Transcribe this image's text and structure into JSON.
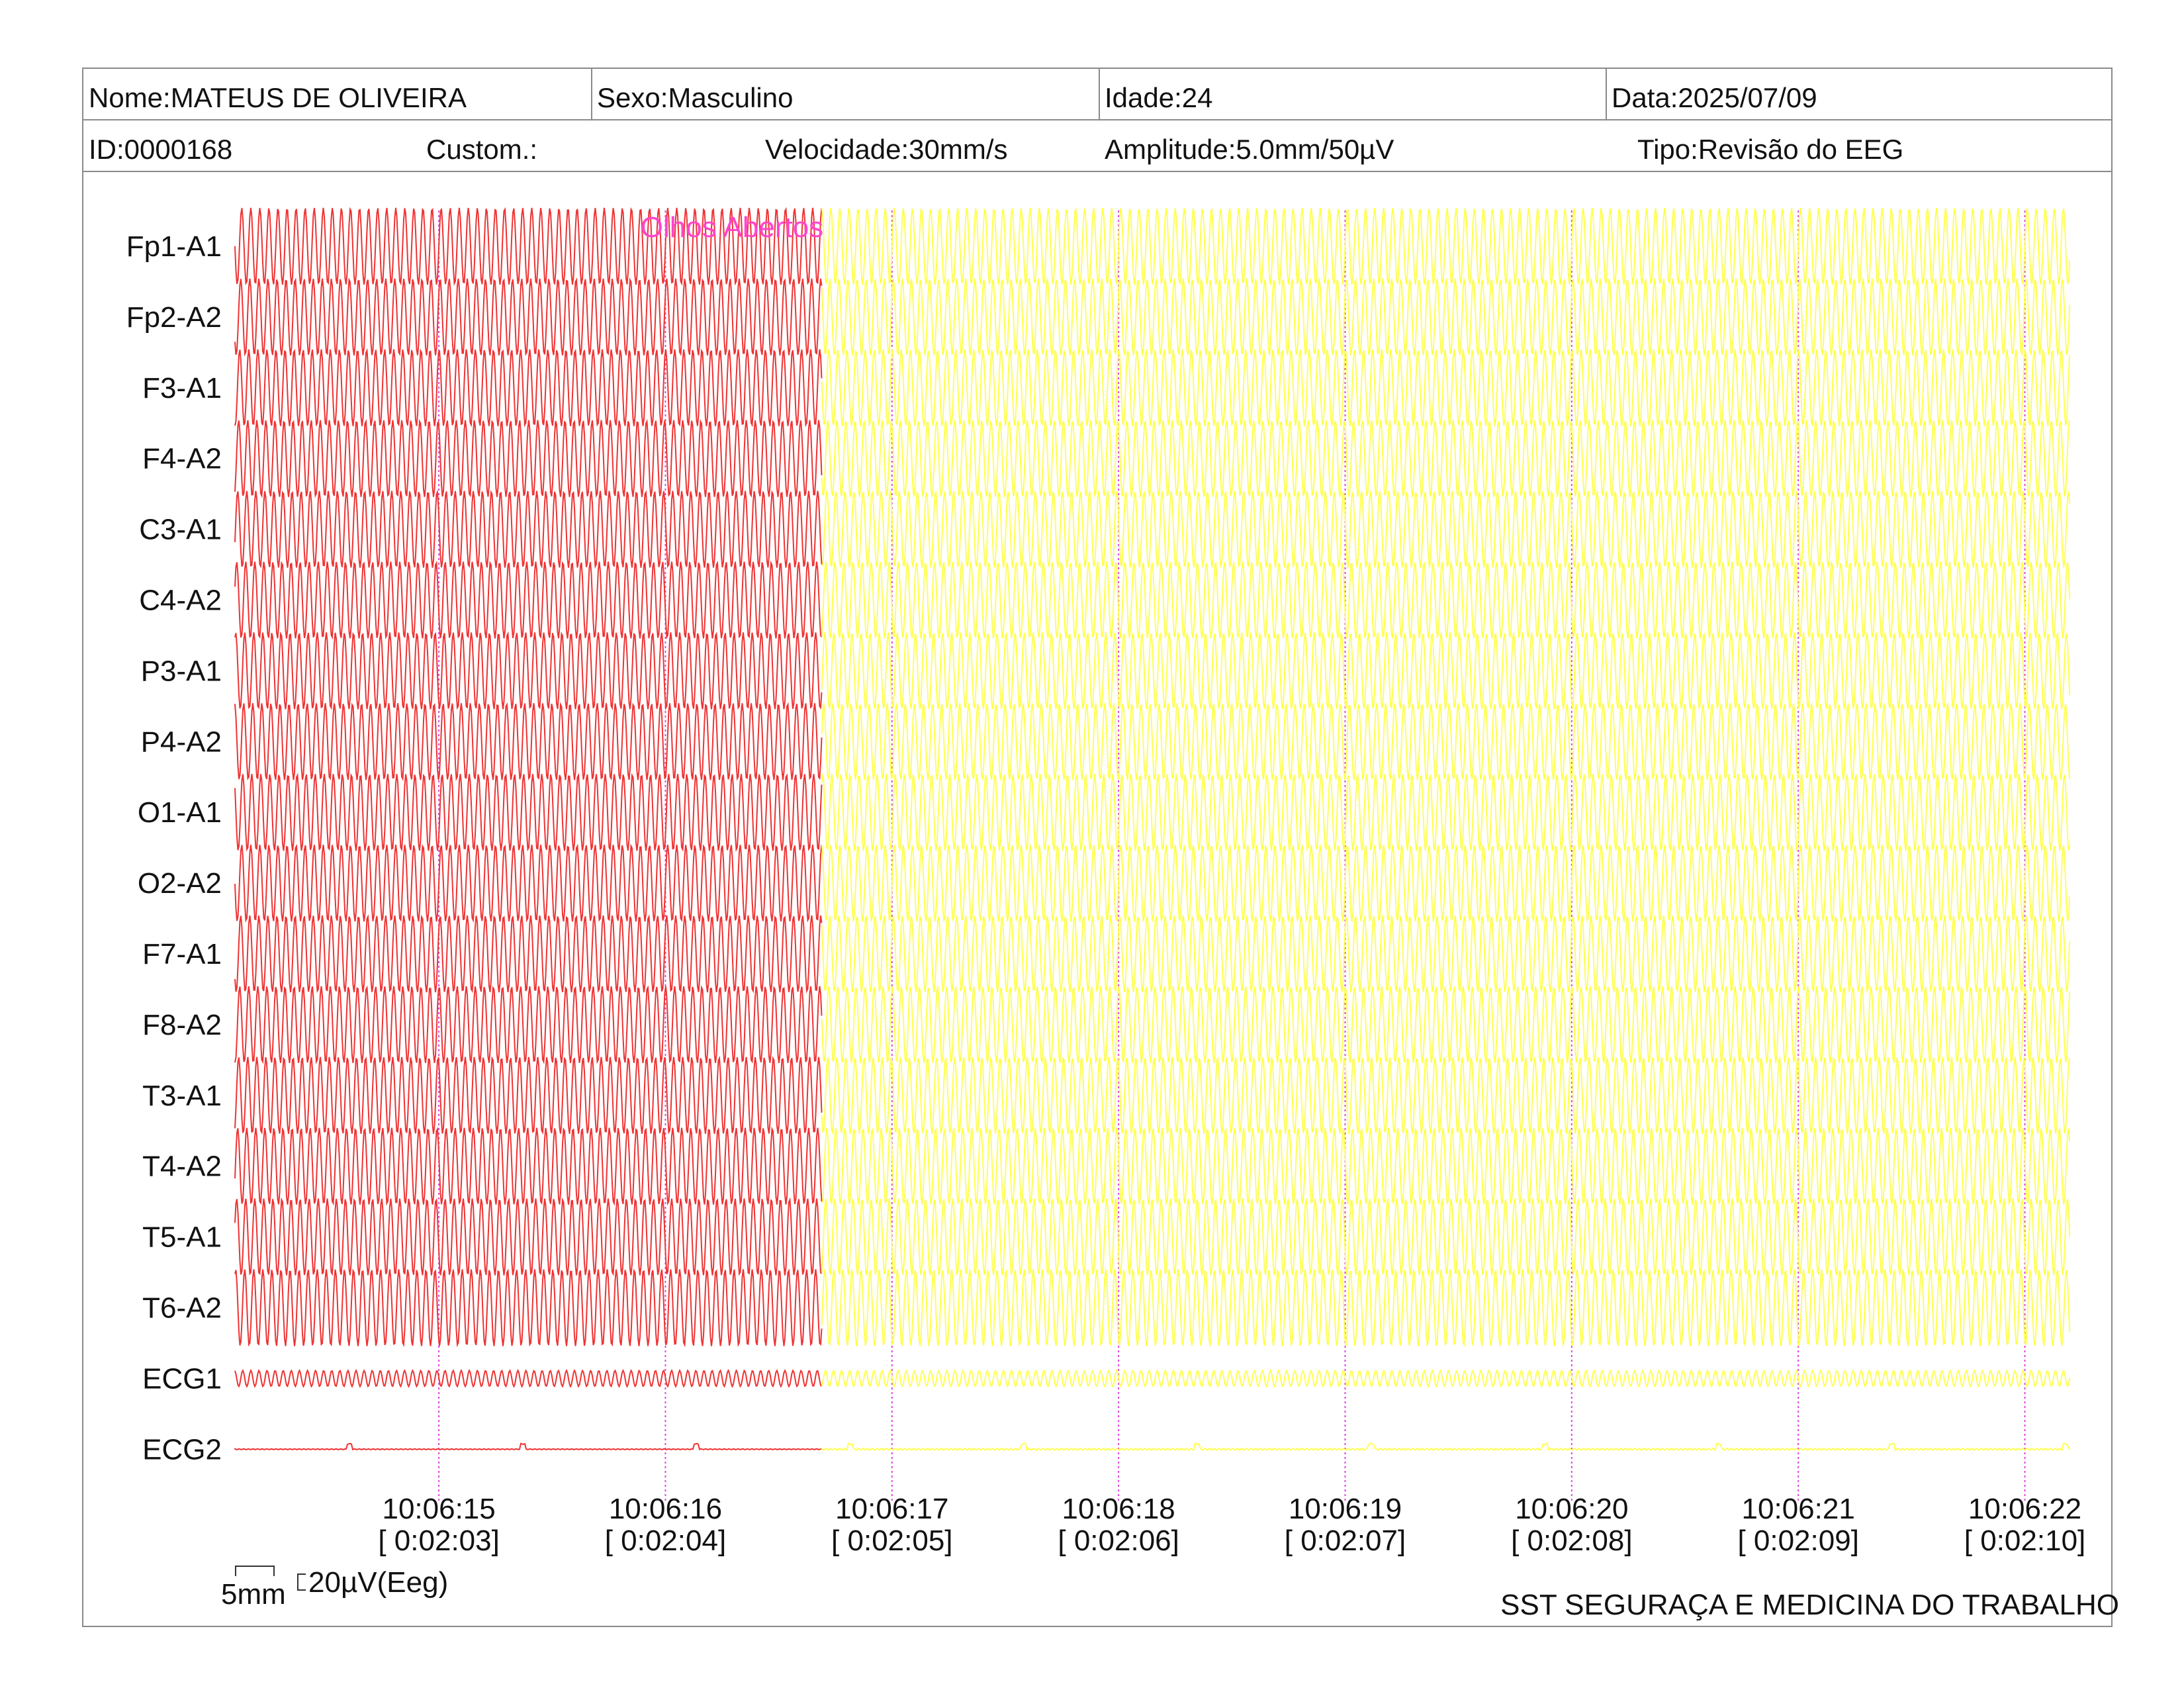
{
  "header": {
    "nome": "Nome:MATEUS DE OLIVEIRA",
    "sexo": "Sexo:Masculino",
    "idade": "Idade:24",
    "data": "Data:2025/07/09",
    "id": "ID:0000168",
    "custom": "Custom.:",
    "velocidade": "Velocidade:30mm/s",
    "amplitude": "Amplitude:5.0mm/50µV",
    "tipo": "Tipo:Revisão do EEG"
  },
  "chart_data": {
    "type": "line",
    "channels": [
      "Fp1-A1",
      "Fp2-A2",
      "F3-A1",
      "F4-A2",
      "C3-A1",
      "C4-A2",
      "P3-A1",
      "P4-A2",
      "O1-A1",
      "O2-A2",
      "F7-A1",
      "F8-A2",
      "T3-A1",
      "T4-A2",
      "T5-A1",
      "T6-A2",
      "ECG1",
      "ECG2"
    ],
    "time_ticks": [
      {
        "clock": "10:06:15",
        "elapsed": "[ 0:02:03]"
      },
      {
        "clock": "10:06:16",
        "elapsed": "[ 0:02:04]"
      },
      {
        "clock": "10:06:17",
        "elapsed": "[ 0:02:05]"
      },
      {
        "clock": "10:06:18",
        "elapsed": "[ 0:02:06]"
      },
      {
        "clock": "10:06:19",
        "elapsed": "[ 0:02:07]"
      },
      {
        "clock": "10:06:20",
        "elapsed": "[ 0:02:08]"
      },
      {
        "clock": "10:06:21",
        "elapsed": "[ 0:02:09]"
      },
      {
        "clock": "10:06:22",
        "elapsed": "[ 0:02:10]"
      }
    ],
    "x_range_s": [
      0,
      8.1
    ],
    "tick_times_s": [
      0.9,
      1.9,
      2.9,
      3.9,
      4.9,
      5.9,
      6.9,
      7.9
    ],
    "segments": [
      {
        "color": "#ee3333",
        "x_range_s": [
          0,
          2.59
        ]
      },
      {
        "color": "#ffff44",
        "x_range_s": [
          2.59,
          8.1
        ]
      }
    ],
    "eeg_frequency_hz": 25,
    "ecg1_frequency_hz": 28,
    "annotation": {
      "text": "Olhos Abertos",
      "time_s": 1.79,
      "color": "#ff44cc"
    },
    "grid_line_color": "#dd44dd"
  },
  "scale": {
    "time_label": "5mm",
    "amp_label": "20µV(Eeg)"
  },
  "footer": {
    "organization": "SST SEGURAÇA E MEDICINA DO TRABALHO"
  }
}
